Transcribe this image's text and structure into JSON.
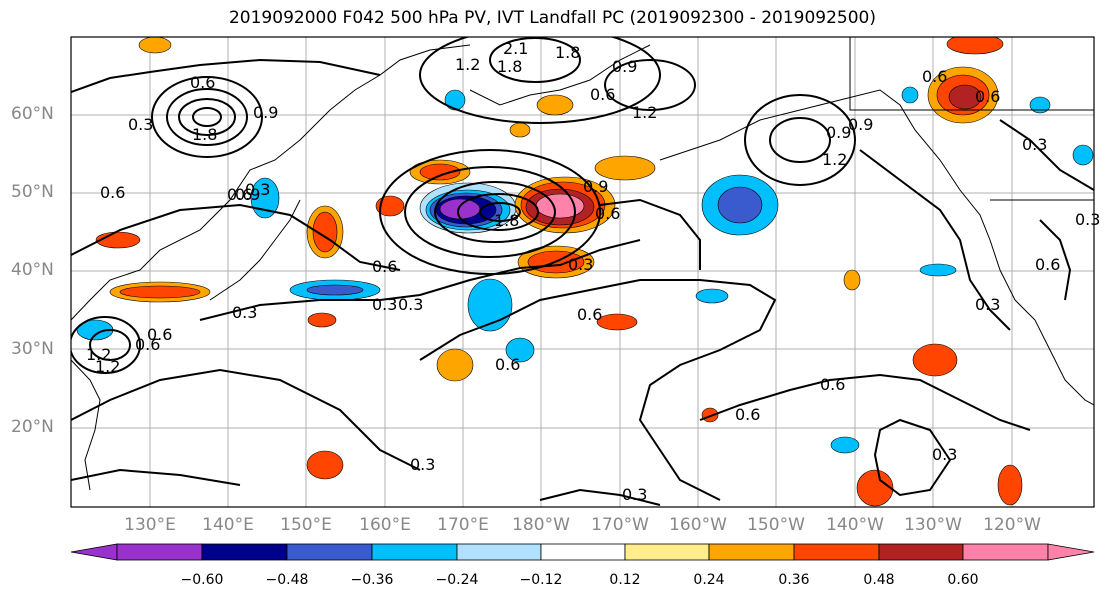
{
  "title": "2019092000 F042 500 hPa PV, IVT Landfall PC (2019092300 - 2019092500)",
  "lat_labels": [
    "60°N",
    "50°N",
    "40°N",
    "30°N",
    "20°N"
  ],
  "lon_labels": [
    "130°E",
    "140°E",
    "150°E",
    "160°E",
    "170°E",
    "180°W",
    "170°W",
    "160°W",
    "150°W",
    "140°W",
    "130°W",
    "120°W"
  ],
  "contour_labels": [
    "2.1",
    "1.8",
    "1.2",
    "0.9",
    "0.6",
    "0.3",
    "1.8",
    "0.9",
    "0.6",
    "1.8",
    "0.9",
    "0.6",
    "0.3",
    "0.6",
    "0.3",
    "0.3",
    "0.6",
    "0.6",
    "0.3",
    "0.6",
    "0.6",
    "1.2",
    "0.9",
    "0.3",
    "0.6",
    "0.3",
    "0.3",
    "0.3",
    "0.9",
    "1.2",
    "0.6",
    "1.8",
    "0.6",
    "0.3",
    "0.9",
    "0.6",
    "0.3",
    "0.6",
    "0.3",
    "1.2",
    "0.6",
    "0.6",
    "1.2"
  ],
  "colorbar": {
    "colors": [
      "#9932cc",
      "#00008b",
      "#3a5bcd",
      "#00bfff",
      "#b0e2ff",
      "#ffffff",
      "#ffec8b",
      "#ffa500",
      "#ff4500",
      "#b22222",
      "#ff82ab"
    ],
    "tick_labels": [
      "−0.60",
      "−0.48",
      "−0.36",
      "−0.24",
      "−0.12",
      "0.12",
      "0.24",
      "0.36",
      "0.48",
      "0.60"
    ]
  }
}
